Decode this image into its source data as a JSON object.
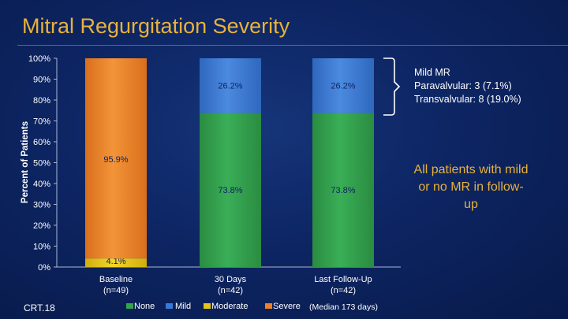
{
  "slide": {
    "title": "Mitral Regurgitation Severity",
    "footer": "CRT.18"
  },
  "annotations": {
    "mild_mr": [
      "Mild MR",
      "Paravalvular: 3 (7.1%)",
      "Transvalvular: 8 (19.0%)"
    ],
    "all_patients": "All patients with mild or no MR in follow-up"
  },
  "colors": {
    "None": "#33a34f",
    "Mild": "#3a79d4",
    "Moderate": "#e3c51b",
    "Severe": "#ea8129",
    "title": "#e8b23a",
    "axis_text": "#ffffff"
  },
  "chart_data": {
    "type": "bar",
    "stacked": true,
    "categories": [
      [
        "Baseline",
        "(n=49)"
      ],
      [
        "30 Days",
        "(n=42)"
      ],
      [
        "Last Follow-Up",
        "(n=42)"
      ]
    ],
    "series": [
      {
        "name": "None",
        "values": [
          0,
          73.8,
          73.8
        ],
        "labels": [
          "",
          "73.8%",
          "73.8%"
        ]
      },
      {
        "name": "Mild",
        "values": [
          0,
          26.2,
          26.2
        ],
        "labels": [
          "",
          "26.2%",
          "26.2%"
        ]
      },
      {
        "name": "Moderate",
        "values": [
          4.1,
          0,
          0
        ],
        "labels": [
          "4.1%",
          "",
          ""
        ]
      },
      {
        "name": "Severe",
        "values": [
          95.9,
          0,
          0
        ],
        "labels": [
          "95.9%",
          "",
          ""
        ]
      }
    ],
    "yticks": [
      "0%",
      "10%",
      "20%",
      "30%",
      "40%",
      "50%",
      "60%",
      "70%",
      "80%",
      "90%",
      "100%"
    ],
    "ylabel": "Percent of Patients",
    "ylim": [
      0,
      100
    ],
    "legend_placement": "bottom",
    "legend_note": "(Median 173 days)"
  }
}
